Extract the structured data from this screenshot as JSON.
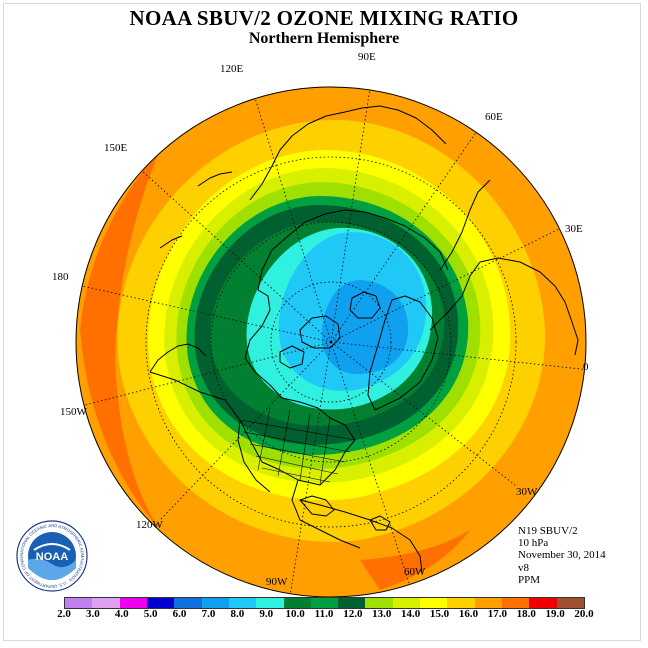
{
  "title": "NOAA SBUV/2 OZONE MIXING RATIO",
  "subtitle": "Northern Hemisphere",
  "longitude_labels": [
    "90E",
    "60E",
    "30E",
    "0",
    "30W",
    "60W",
    "90W",
    "120W",
    "150W",
    "180",
    "150E",
    "120E"
  ],
  "info": [
    "N19 SBUV/2",
    "10 hPa",
    "November 30, 2014",
    "v8",
    "PPM"
  ],
  "logo": {
    "text": "NOAA",
    "ring_text": "NATIONAL OCEANIC AND ATMOSPHERIC ADMINISTRATION · U.S. DEPARTMENT OF COMMERCE"
  },
  "colorbar": {
    "ticks": [
      "2.0",
      "3.0",
      "4.0",
      "5.0",
      "6.0",
      "7.0",
      "8.0",
      "9.0",
      "10.0",
      "11.0",
      "12.0",
      "13.0",
      "14.0",
      "15.0",
      "16.0",
      "17.0",
      "18.0",
      "19.0",
      "20.0"
    ],
    "colors": [
      "#c080f0",
      "#e0a0f0",
      "#f000f0",
      "#0000d0",
      "#1070e0",
      "#10a0f0",
      "#20c8f8",
      "#30f0e0",
      "#008030",
      "#00a040",
      "#006030",
      "#a0e000",
      "#d8f000",
      "#ffff00",
      "#ffd000",
      "#ffa000",
      "#ff7000",
      "#f00000",
      "#a05030"
    ]
  }
}
